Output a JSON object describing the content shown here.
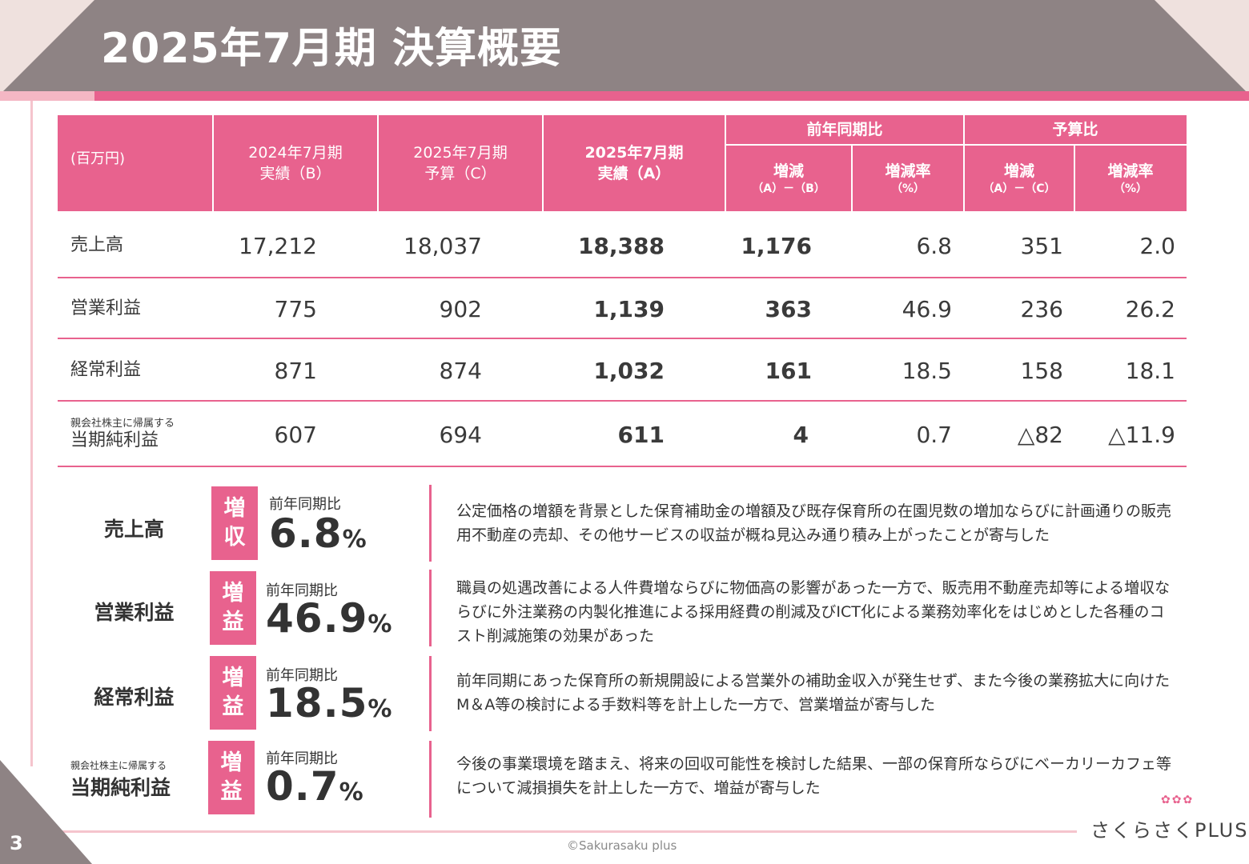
{
  "header": {
    "title": "2025年7月期 決算概要"
  },
  "table": {
    "unit": "(百万円)",
    "col_b": [
      "2024年7月期",
      "実績（B）"
    ],
    "col_c": [
      "2025年7月期",
      "予算（C）"
    ],
    "col_a": [
      "2025年7月期",
      "実績（A）"
    ],
    "group_yoy": "前年同期比",
    "group_budget": "予算比",
    "diff_label": "増減",
    "diff_yoy_sub": "（A）－（B）",
    "diff_budget_sub": "（A）－（C）",
    "rate_label": "増減率",
    "rate_sub": "（%）",
    "rows": [
      {
        "label_small": "",
        "label": "売上高",
        "b": "17,212",
        "c": "18,037",
        "a": "18,388",
        "yoy_diff": "1,176",
        "yoy_rate": "6.8",
        "bud_diff": "351",
        "bud_rate": "2.0"
      },
      {
        "label_small": "",
        "label": "営業利益",
        "b": "775",
        "c": "902",
        "a": "1,139",
        "yoy_diff": "363",
        "yoy_rate": "46.9",
        "bud_diff": "236",
        "bud_rate": "26.2"
      },
      {
        "label_small": "",
        "label": "経常利益",
        "b": "871",
        "c": "874",
        "a": "1,032",
        "yoy_diff": "161",
        "yoy_rate": "18.5",
        "bud_diff": "158",
        "bud_rate": "18.1"
      },
      {
        "label_small": "親会社株主に帰属する",
        "label": "当期純利益",
        "b": "607",
        "c": "694",
        "a": "611",
        "yoy_diff": "4",
        "yoy_rate": "0.7",
        "bud_diff": "△82",
        "bud_rate": "△11.9"
      }
    ]
  },
  "summary": [
    {
      "label_small": "",
      "label": "売上高",
      "badge1": "増",
      "badge2": "収",
      "yoy": "前年同期比",
      "pct": "6.8",
      "pct_unit": "%",
      "desc": "公定価格の増額を背景とした保育補助金の増額及び既存保育所の在園児数の増加ならびに計画通りの販売用不動産の売却、その他サービスの収益が概ね見込み通り積み上がったことが寄与した"
    },
    {
      "label_small": "",
      "label": "営業利益",
      "badge1": "増",
      "badge2": "益",
      "yoy": "前年同期比",
      "pct": "46.9",
      "pct_unit": "%",
      "desc": "職員の処遇改善による人件費増ならびに物価高の影響があった一方で、販売用不動産売却等による増収ならびに外注業務の内製化推進による採用経費の削減及びICT化による業務効率化をはじめとした各種のコスト削減施策の効果があった"
    },
    {
      "label_small": "",
      "label": "経常利益",
      "badge1": "増",
      "badge2": "益",
      "yoy": "前年同期比",
      "pct": "18.5",
      "pct_unit": "%",
      "desc": "前年同期にあった保育所の新規開設による営業外の補助金収入が発生せず、また今後の業務拡大に向けたM＆A等の検討による手数料等を計上した一方で、営業増益が寄与した"
    },
    {
      "label_small": "親会社株主に帰属する",
      "label": "当期純利益",
      "badge1": "増",
      "badge2": "益",
      "yoy": "前年同期比",
      "pct": "0.7",
      "pct_unit": "%",
      "desc": "今後の事業環境を踏まえ、将来の回収可能性を検討した結果、一部の保育所ならびにベーカリーカフェ等について減損損失を計上した一方で、増益が寄与した"
    }
  ],
  "footer": {
    "page": "3",
    "copyright": "©Sakurasaku plus",
    "logo": "さくらさくPLUS",
    "logo_mark": "✿✿✿"
  },
  "colors": {
    "accent": "#e8628e",
    "header_band": "#8e8384",
    "light_pink": "#f5c4cd"
  }
}
